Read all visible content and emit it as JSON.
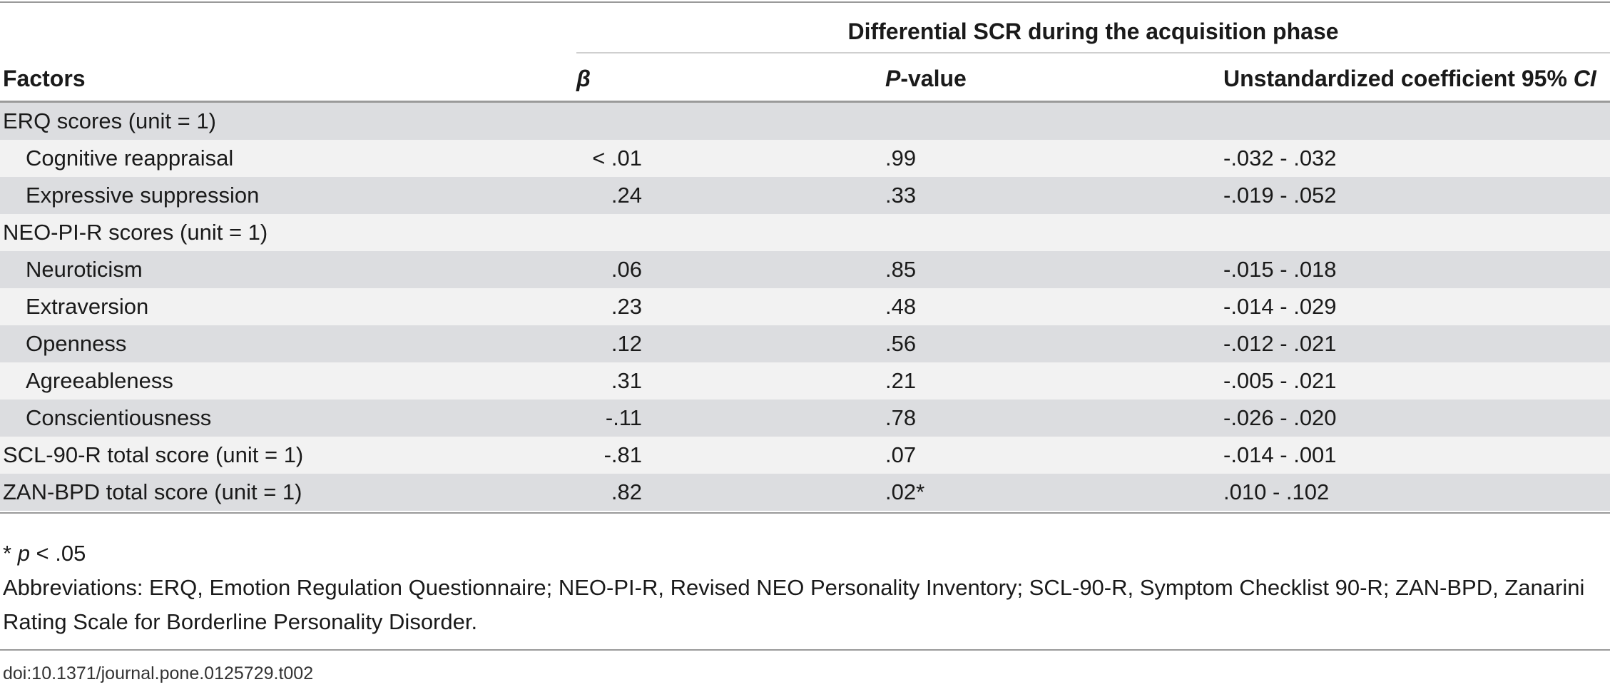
{
  "table": {
    "span_header": "Differential SCR during the acquisition phase",
    "columns": {
      "factors": "Factors",
      "beta": "β",
      "p_italic": "P",
      "p_rest": "-value",
      "ci_text": "Unstandardized coefficient 95% ",
      "ci_italic": "CI"
    },
    "rows": [
      {
        "factor": "ERQ scores (unit = 1)",
        "beta": "",
        "p": "",
        "ci": ""
      },
      {
        "factor": "Cognitive reappraisal",
        "beta": "< .01",
        "p": ".99",
        "ci": "-.032 - .032"
      },
      {
        "factor": "Expressive suppression",
        "beta": ".24",
        "p": ".33",
        "ci": "-.019 - .052"
      },
      {
        "factor": "NEO-PI-R scores (unit = 1)",
        "beta": "",
        "p": "",
        "ci": ""
      },
      {
        "factor": "Neuroticism",
        "beta": ".06",
        "p": ".85",
        "ci": "-.015 - .018"
      },
      {
        "factor": "Extraversion",
        "beta": ".23",
        "p": ".48",
        "ci": "-.014 - .029"
      },
      {
        "factor": "Openness",
        "beta": ".12",
        "p": ".56",
        "ci": "-.012 - .021"
      },
      {
        "factor": "Agreeableness",
        "beta": ".31",
        "p": ".21",
        "ci": "-.005 - .021"
      },
      {
        "factor": "Conscientiousness",
        "beta": "-.11",
        "p": ".78",
        "ci": "-.026 - .020"
      },
      {
        "factor": "SCL-90-R total score (unit = 1)",
        "beta": "-.81",
        "p": ".07",
        "ci": "-.014 - .001"
      },
      {
        "factor": "ZAN-BPD total score (unit = 1)",
        "beta": ".82",
        "p": ".02*",
        "ci": ".010 - .102"
      }
    ]
  },
  "footnotes": {
    "sig_star": "* ",
    "sig_p": "p",
    "sig_rest": " < .05",
    "abbreviations": "Abbreviations: ERQ, Emotion Regulation Questionnaire; NEO-PI-R, Revised NEO Personality Inventory; SCL-90-R, Symptom Checklist 90-R; ZAN-BPD, Zanarini Rating Scale for Borderline Personality Disorder."
  },
  "doi": "doi:10.1371/journal.pone.0125729.t002"
}
